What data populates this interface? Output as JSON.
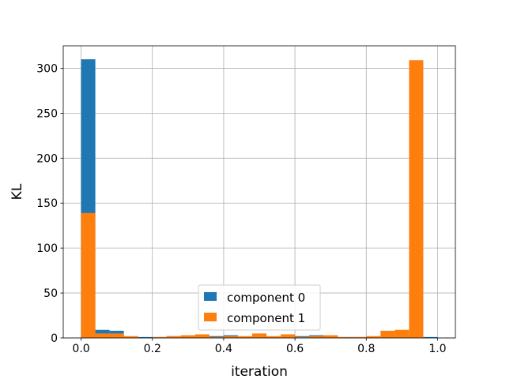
{
  "chart_data": {
    "type": "bar",
    "subtype": "histogram-overlay",
    "title": "",
    "xlabel": "iteration",
    "ylabel": "KL",
    "xlim": [
      -0.05,
      1.05
    ],
    "ylim": [
      0,
      325
    ],
    "xticks": [
      "0.0",
      "0.2",
      "0.4",
      "0.6",
      "0.8",
      "1.0"
    ],
    "yticks": [
      "0",
      "50",
      "100",
      "150",
      "200",
      "250",
      "300"
    ],
    "grid": true,
    "legend": "lower-center",
    "bins": 25,
    "bin_start": 0.0,
    "bin_width": 0.04,
    "series": [
      {
        "name": "component 0",
        "color": "#1f77b4",
        "values": [
          310,
          9,
          8,
          1,
          1,
          1,
          2,
          1,
          1,
          2,
          3,
          1,
          1,
          1,
          1,
          2,
          3,
          2,
          1,
          1,
          1,
          1,
          1,
          1,
          1
        ]
      },
      {
        "name": "component 1",
        "color": "#ff7f0e",
        "values": [
          139,
          5,
          5,
          2,
          0,
          1,
          2,
          3,
          4,
          1,
          2,
          2,
          5,
          2,
          4,
          1,
          2,
          3,
          1,
          1,
          2,
          8,
          9,
          309,
          0
        ]
      }
    ]
  }
}
